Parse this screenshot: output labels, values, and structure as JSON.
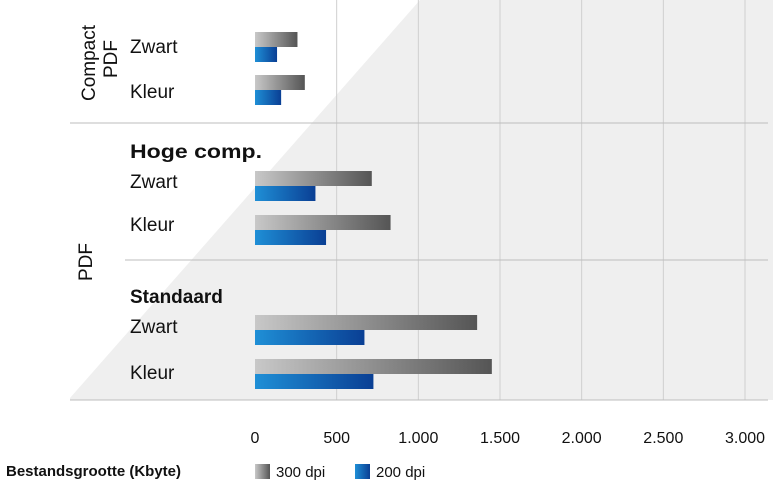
{
  "colors": {
    "series_300_start": "#c8c8c8",
    "series_300_end": "#555555",
    "series_200_start": "#1f8fd6",
    "series_200_end": "#0a3f94",
    "grid": "#cfcfcf",
    "separator": "#bdbdbd",
    "background_wedge": "#efefef",
    "text": "#111111"
  },
  "chart_data": {
    "type": "bar",
    "orientation": "horizontal",
    "xlabel": "Bestandsgrootte (Kbyte)",
    "xlim": [
      0,
      3000
    ],
    "xticks": [
      0,
      500,
      1000,
      1500,
      2000,
      2500,
      3000
    ],
    "xtick_labels": [
      "0",
      "500",
      "1.000",
      "1.500",
      "2.000",
      "2.500",
      "3.000"
    ],
    "grid": true,
    "legend_position": "bottom",
    "groups": [
      {
        "label_lines": [
          "Compact",
          "PDF"
        ],
        "subgroups": [
          {
            "title": "",
            "categories": [
              "Zwart",
              "Kleur"
            ]
          }
        ]
      },
      {
        "label_lines": [
          "PDF"
        ],
        "subgroups": [
          {
            "title": "Hoge comp.",
            "categories": [
              "Zwart",
              "Kleur"
            ]
          },
          {
            "title": "Standaard",
            "categories": [
              "Zwart",
              "Kleur"
            ]
          }
        ]
      }
    ],
    "categories": [
      "Compact PDF Zwart",
      "Compact PDF Kleur",
      "Hoge comp. Zwart",
      "Hoge comp. Kleur",
      "Standaard Zwart",
      "Standaard Kleur"
    ],
    "series": [
      {
        "name": "300 dpi",
        "values": [
          260,
          305,
          715,
          830,
          1360,
          1450
        ]
      },
      {
        "name": "200 dpi",
        "values": [
          135,
          160,
          370,
          435,
          670,
          725
        ]
      }
    ]
  }
}
